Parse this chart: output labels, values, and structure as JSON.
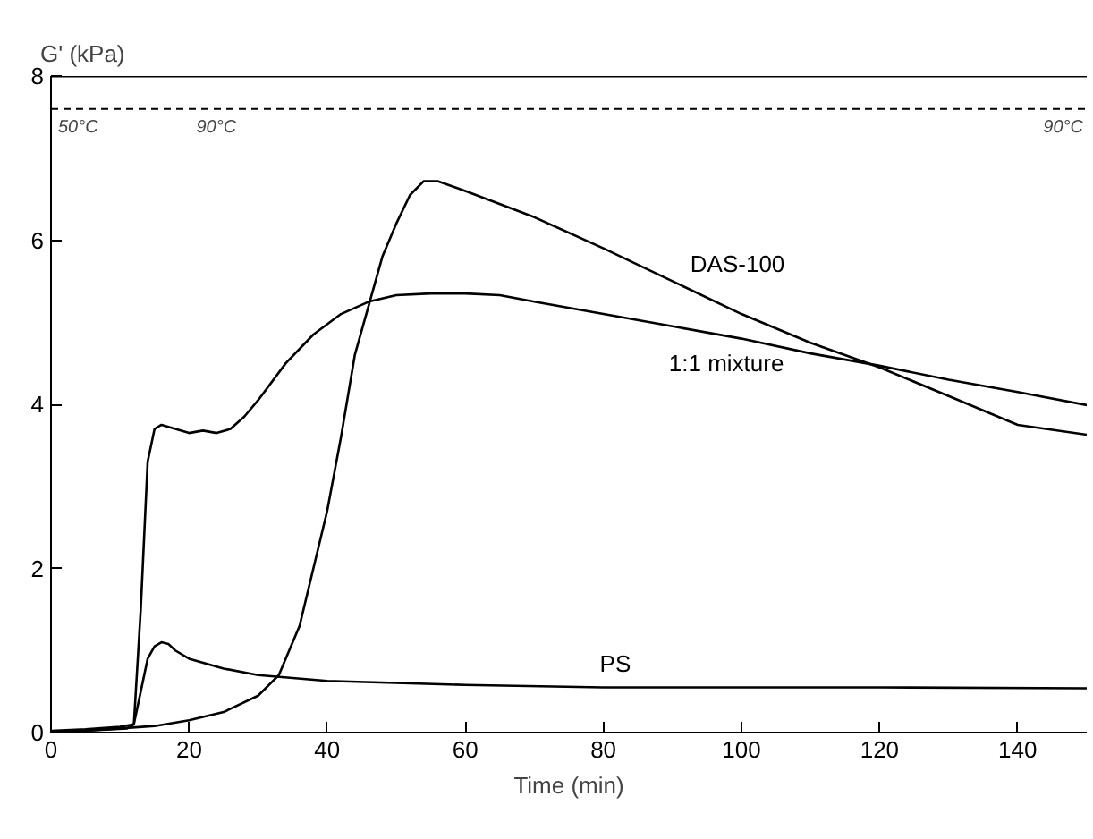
{
  "chart_data": {
    "type": "line",
    "xlabel": "Time (min)",
    "ylabel": "G' (kPa)",
    "xlim": [
      0,
      150
    ],
    "ylim": [
      0,
      8
    ],
    "xticks": [
      0,
      20,
      40,
      60,
      80,
      100,
      120,
      140
    ],
    "yticks": [
      0,
      2,
      4,
      6,
      8
    ],
    "grid": false,
    "marker": "none",
    "line_style": "solid",
    "series": [
      {
        "name": "DAS-100",
        "color": "#000000",
        "x": [
          0,
          10,
          15,
          20,
          25,
          30,
          33,
          36,
          38,
          40,
          42,
          44,
          46,
          48,
          50,
          52,
          54,
          56,
          60,
          70,
          80,
          90,
          100,
          110,
          120,
          130,
          140,
          150
        ],
        "values": [
          0,
          0.05,
          0.08,
          0.15,
          0.25,
          0.45,
          0.7,
          1.3,
          2,
          2.7,
          3.6,
          4.6,
          5.2,
          5.8,
          6.2,
          6.55,
          6.72,
          6.72,
          6.6,
          6.28,
          5.9,
          5.5,
          5.1,
          4.75,
          4.45,
          4.1,
          3.75,
          3.63
        ]
      },
      {
        "name": "1:1 mixture",
        "color": "#000000",
        "x": [
          0,
          5,
          10,
          12,
          13,
          14,
          15,
          16,
          18,
          20,
          22,
          24,
          26,
          28,
          30,
          34,
          38,
          42,
          46,
          50,
          55,
          60,
          65,
          70,
          80,
          90,
          100,
          110,
          120,
          130,
          140,
          150
        ],
        "values": [
          0.02,
          0.04,
          0.07,
          0.1,
          1.5,
          3.3,
          3.7,
          3.75,
          3.7,
          3.65,
          3.68,
          3.65,
          3.7,
          3.85,
          4.05,
          4.5,
          4.85,
          5.1,
          5.25,
          5.33,
          5.35,
          5.35,
          5.33,
          5.25,
          5.1,
          4.95,
          4.8,
          4.62,
          4.47,
          4.3,
          4.15,
          3.99
        ]
      },
      {
        "name": "PS",
        "color": "#000000",
        "x": [
          0,
          11,
          12,
          13,
          14,
          15,
          16,
          17,
          18,
          20,
          25,
          30,
          40,
          60,
          80,
          100,
          120,
          150
        ],
        "values": [
          0,
          0.05,
          0.1,
          0.5,
          0.9,
          1.05,
          1.1,
          1.08,
          1.0,
          0.9,
          0.78,
          0.7,
          0.63,
          0.58,
          0.55,
          0.55,
          0.55,
          0.54
        ]
      }
    ],
    "ref_lines": [
      {
        "axis": "y",
        "value": 7.6,
        "label": null,
        "line_style": "dashed",
        "color": "#000000"
      }
    ],
    "annotations": [
      {
        "text": "50°C",
        "x": 0,
        "y": 7.6
      },
      {
        "text": "90°C",
        "x": 20,
        "y": 7.6
      },
      {
        "text": "90°C",
        "x": 150,
        "y": 7.6
      }
    ]
  }
}
